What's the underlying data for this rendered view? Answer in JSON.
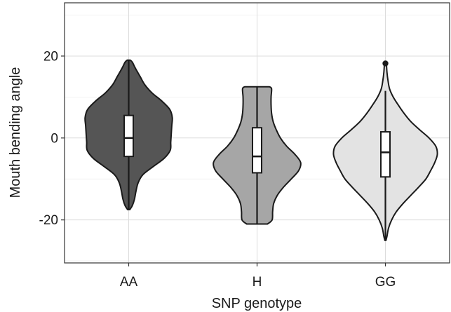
{
  "chart_data": {
    "type": "violin",
    "xlabel": "SNP genotype",
    "ylabel": "Mouth bending angle",
    "categories": [
      "AA",
      "H",
      "GG"
    ],
    "ylim": [
      -30.5,
      33
    ],
    "y_ticks": [
      -20,
      0,
      20
    ],
    "grid": true,
    "fill_colors": [
      "#555555",
      "#a6a6a6",
      "#e3e3e3"
    ],
    "series": [
      {
        "category": "AA",
        "box": {
          "q1": -4.5,
          "median": 0,
          "q3": 5.5,
          "whisker_low": -17.5,
          "whisker_high": 19
        },
        "outliers": [],
        "density": [
          [
            -17.5,
            0.02
          ],
          [
            -16.5,
            0.07
          ],
          [
            -15,
            0.11
          ],
          [
            -13,
            0.14
          ],
          [
            -11,
            0.18
          ],
          [
            -9,
            0.27
          ],
          [
            -7,
            0.47
          ],
          [
            -5,
            0.68
          ],
          [
            -3,
            0.8
          ],
          [
            -1,
            0.81
          ],
          [
            1,
            0.82
          ],
          [
            3,
            0.83
          ],
          [
            5,
            0.84
          ],
          [
            7,
            0.79
          ],
          [
            9,
            0.64
          ],
          [
            11,
            0.45
          ],
          [
            13,
            0.31
          ],
          [
            15,
            0.22
          ],
          [
            17,
            0.13
          ],
          [
            18.5,
            0.07
          ],
          [
            19,
            0.03
          ]
        ]
      },
      {
        "category": "H",
        "box": {
          "q1": -8.5,
          "median": -4.5,
          "q3": 2.5,
          "whisker_low": -21,
          "whisker_high": 12.5
        },
        "outliers": [],
        "density": [
          [
            -21,
            0.2
          ],
          [
            -20,
            0.29
          ],
          [
            -18,
            0.3
          ],
          [
            -16,
            0.32
          ],
          [
            -14,
            0.39
          ],
          [
            -12,
            0.51
          ],
          [
            -10,
            0.66
          ],
          [
            -8,
            0.8
          ],
          [
            -6,
            0.84
          ],
          [
            -4,
            0.73
          ],
          [
            -2,
            0.57
          ],
          [
            0,
            0.45
          ],
          [
            2,
            0.37
          ],
          [
            4,
            0.31
          ],
          [
            6,
            0.28
          ],
          [
            8,
            0.27
          ],
          [
            10,
            0.27
          ],
          [
            12,
            0.28
          ],
          [
            12.5,
            0.24
          ]
        ]
      },
      {
        "category": "GG",
        "box": {
          "q1": -9.5,
          "median": -3.5,
          "q3": 1.5,
          "whisker_low": -25,
          "whisker_high": 11.5
        },
        "outliers": [
          18.2
        ],
        "density": [
          [
            -25,
            0.01
          ],
          [
            -24,
            0.03
          ],
          [
            -22,
            0.06
          ],
          [
            -20,
            0.12
          ],
          [
            -18,
            0.21
          ],
          [
            -16,
            0.34
          ],
          [
            -14,
            0.49
          ],
          [
            -12,
            0.64
          ],
          [
            -10,
            0.78
          ],
          [
            -8,
            0.87
          ],
          [
            -6,
            0.95
          ],
          [
            -4,
            1.0
          ],
          [
            -2,
            0.97
          ],
          [
            0,
            0.84
          ],
          [
            2,
            0.66
          ],
          [
            4,
            0.49
          ],
          [
            6,
            0.36
          ],
          [
            8,
            0.25
          ],
          [
            10,
            0.15
          ],
          [
            12,
            0.08
          ],
          [
            14,
            0.05
          ],
          [
            16,
            0.03
          ],
          [
            18,
            0.02
          ]
        ]
      }
    ]
  }
}
